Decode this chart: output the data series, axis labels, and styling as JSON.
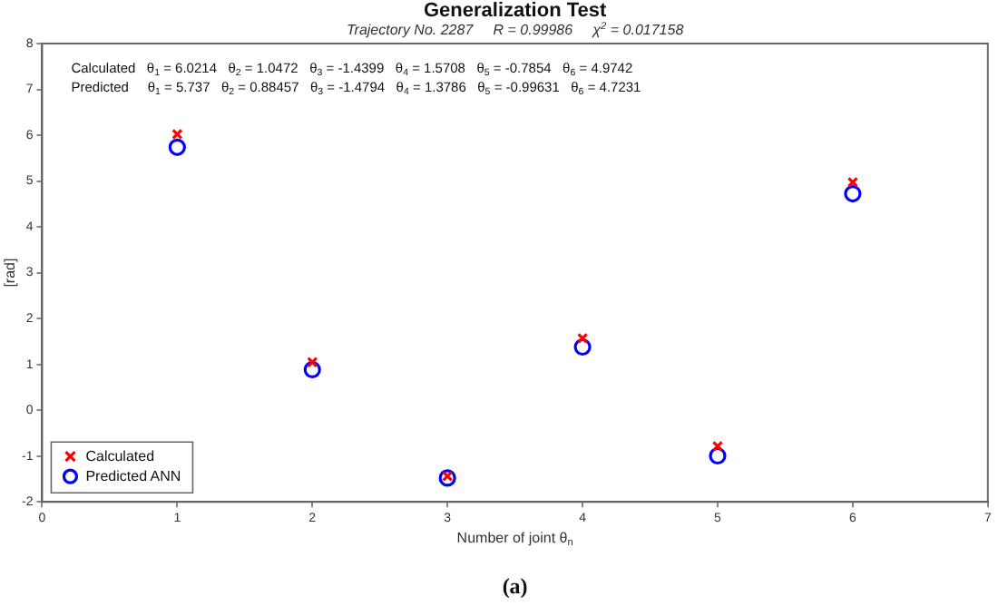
{
  "chart_data": {
    "type": "scatter",
    "title": "Generalization Test",
    "subtitle": "Trajectory No. 2287     R = 0.99986     χ$^{2}$ = 0.017158",
    "xlabel": "Number of joint θ$_{n}$",
    "ylabel": "[rad]",
    "x": [
      1,
      2,
      3,
      4,
      5,
      6
    ],
    "series": [
      {
        "name": "Calculated",
        "color": "#ff0000",
        "marker": "cross",
        "values": [
          6.0214,
          1.0472,
          -1.4399,
          1.5708,
          -0.7854,
          4.9742
        ]
      },
      {
        "name": "Predicted ANN",
        "color": "#0000ff",
        "marker": "circle",
        "values": [
          5.737,
          0.88457,
          -1.4794,
          1.3786,
          -0.99631,
          4.7231
        ]
      }
    ],
    "xlim": [
      0,
      7
    ],
    "xticks": [
      0,
      1,
      2,
      3,
      4,
      5,
      6,
      7
    ],
    "ylim": [
      -2,
      8
    ],
    "yticks": [
      -2,
      -1,
      0,
      1,
      2,
      3,
      4,
      5,
      6,
      7,
      8
    ],
    "grid": false,
    "legend": "bottom left",
    "annotations": [
      "Calculated   θ$_{1}$ = 6.0214   θ$_{2}$ = 1.0472   θ$_{3}$ = -1.4399   θ$_{4}$ = 1.5708   θ$_{5}$ = -0.7854   θ$_{6}$ = 4.9742",
      "Predicted     θ$_{1}$ = 5.737   θ$_{2}$ = 0.88457   θ$_{3}$ = -1.4794   θ$_{4}$ = 1.3786   θ$_{5}$ = -0.99631   θ$_{6}$ = 4.7231",
      "(a)"
    ]
  }
}
